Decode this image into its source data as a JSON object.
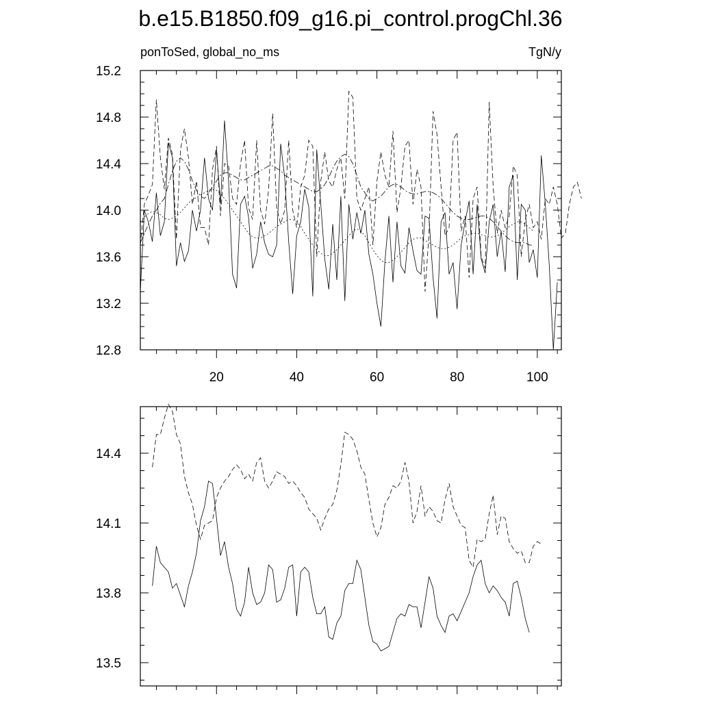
{
  "chart_data": {
    "title": "b.e15.B1850.f09_g16.pi_control.progChl.36",
    "panels": [
      {
        "type": "line",
        "left_label": "ponToSed, global_no_ms",
        "right_label": "TgN/y",
        "xlim": [
          1,
          106
        ],
        "ylim": [
          12.8,
          15.2
        ],
        "yticks": [
          12.8,
          13.2,
          13.6,
          14.0,
          14.4,
          14.8,
          15.2
        ],
        "ytick_labels": [
          "12.8",
          "13.2",
          "13.6",
          "14.0",
          "14.4",
          "14.8",
          "15.2"
        ],
        "xticks": [
          20,
          40,
          60,
          80,
          100
        ],
        "xtick_labels": [
          "20",
          "40",
          "60",
          "80",
          "100"
        ],
        "series": [
          {
            "style": "solid",
            "x_start": 1,
            "values": [
              13.3,
              14.0,
              13.9,
              13.73,
              14.15,
              13.78,
              13.9,
              14.58,
              14.45,
              13.52,
              13.72,
              13.56,
              13.65,
              14.0,
              13.82,
              14.0,
              14.45,
              14.1,
              14.0,
              14.52,
              14.05,
              14.77,
              14.25,
              13.45,
              13.33,
              14.05,
              14.12,
              13.94,
              13.5,
              13.62,
              13.9,
              13.72,
              13.62,
              13.6,
              13.7,
              14.57,
              14.28,
              13.73,
              13.28,
              13.78,
              13.9,
              14.18,
              14.03,
              13.26,
              14.52,
              14.05,
              13.58,
              13.32,
              13.88,
              13.4,
              14.12,
              13.22,
              14.05,
              13.75,
              13.98,
              13.8,
              14.0,
              13.62,
              13.45,
              13.2,
              13.0,
              13.56,
              13.95,
              13.38,
              13.9,
              13.52,
              13.46,
              13.85,
              13.65,
              13.48,
              13.45,
              13.95,
              13.93,
              13.42,
              13.07,
              13.9,
              13.98,
              13.45,
              13.55,
              13.15,
              13.7,
              13.9,
              14.08,
              13.45,
              14.05,
              13.58,
              13.46,
              13.9,
              14.05,
              13.6,
              13.82,
              13.47,
              14.2,
              14.3,
              13.4,
              14.05,
              14.0,
              13.55,
              13.66,
              13.42,
              14.47,
              14.05,
              13.52,
              12.8,
              13.38
            ]
          },
          {
            "style": "dashed",
            "x_start": 1,
            "values": [
              13.7,
              14.05,
              14.13,
              14.22,
              14.95,
              14.45,
              14.18,
              14.62,
              14.48,
              13.75,
              14.52,
              14.7,
              14.45,
              14.05,
              14.25,
              13.85,
              13.85,
              13.7,
              14.35,
              14.55,
              13.95,
              14.4,
              14.38,
              14.1,
              14.05,
              14.4,
              14.6,
              14.02,
              13.92,
              14.6,
              14.0,
              13.88,
              14.18,
              14.83,
              14.02,
              13.88,
              14.0,
              14.6,
              14.0,
              13.85,
              14.2,
              14.3,
              14.6,
              14.55,
              13.6,
              14.25,
              14.5,
              14.25,
              14.2,
              14.35,
              14.45,
              14.1,
              15.02,
              14.97,
              14.1,
              14.0,
              14.1,
              14.2,
              13.7,
              14.25,
              14.5,
              14.3,
              14.2,
              14.68,
              13.98,
              14.2,
              14.55,
              14.6,
              14.05,
              14.35,
              14.2,
              13.3,
              13.8,
              14.85,
              14.65,
              14.2,
              13.78,
              13.85,
              14.6,
              14.67,
              13.82,
              13.95,
              13.42,
              14.1,
              14.2,
              13.6,
              13.5,
              14.93,
              14.2,
              13.8,
              14.0,
              13.85,
              13.95,
              14.38,
              14.3,
              13.6,
              13.92,
              14.05,
              13.85,
              13.9,
              13.75,
              14.1,
              14.05,
              14.2,
              14.05,
              13.76,
              13.8,
              14.05,
              14.2,
              14.24,
              14.1
            ]
          },
          {
            "style": "dash-dot",
            "x_start": 1,
            "values": [
              13.72,
              13.8,
              13.88,
              13.95,
              14.0,
              14.06,
              14.1,
              14.22,
              14.34,
              14.42,
              14.45,
              14.42,
              14.35,
              14.25,
              14.17,
              14.12,
              14.1,
              14.15,
              14.2,
              14.25,
              14.3,
              14.32,
              14.32,
              14.3,
              14.28,
              14.26,
              14.26,
              14.28,
              14.3,
              14.32,
              14.34,
              14.36,
              14.38,
              14.38,
              14.36,
              14.34,
              14.3,
              14.28,
              14.26,
              14.24,
              14.22,
              14.2,
              14.18,
              14.16,
              14.16,
              14.18,
              14.22,
              14.28,
              14.36,
              14.42,
              14.46,
              14.48,
              14.46,
              14.4,
              14.3,
              14.2,
              14.15,
              14.1,
              14.08,
              14.1,
              14.12,
              14.16,
              14.2,
              14.22,
              14.22,
              14.2,
              14.17,
              14.15,
              14.14,
              14.14,
              14.15,
              14.16,
              14.16,
              14.15,
              14.13,
              14.1,
              14.06,
              14.02,
              13.98,
              13.95,
              13.93,
              13.92,
              13.92,
              13.93,
              13.94,
              13.95,
              13.95,
              13.93,
              13.9,
              13.86,
              13.82,
              13.78,
              13.75,
              13.73,
              13.72,
              13.72,
              13.72,
              13.7,
              13.7
            ]
          },
          {
            "style": "dotted",
            "x_start": 1,
            "values": [
              13.9,
              13.94,
              13.97,
              13.99,
              13.98,
              13.96,
              13.93,
              13.92,
              13.93,
              13.95,
              13.98,
              14.02,
              14.06,
              14.09,
              14.11,
              14.13,
              14.15,
              14.17,
              14.18,
              14.17,
              14.14,
              14.1,
              14.05,
              14.0,
              13.95,
              13.9,
              13.85,
              13.8,
              13.77,
              13.76,
              13.76,
              13.78,
              13.8,
              13.83,
              13.86,
              13.88,
              13.9,
              13.92,
              13.92,
              13.9,
              13.86,
              13.8,
              13.75,
              13.7,
              13.66,
              13.63,
              13.61,
              13.61,
              13.63,
              13.66,
              13.7,
              13.74,
              13.78,
              13.82,
              13.84,
              13.82,
              13.78,
              13.72,
              13.66,
              13.61,
              13.57,
              13.55,
              13.55,
              13.57,
              13.6,
              13.64,
              13.68,
              13.72,
              13.75,
              13.76,
              13.76,
              13.74,
              13.72,
              13.7,
              13.68,
              13.67,
              13.67,
              13.68,
              13.7,
              13.73,
              13.76,
              13.78,
              13.79,
              13.8,
              13.8,
              13.79,
              13.78,
              13.77,
              13.77,
              13.78,
              13.8,
              13.83,
              13.86,
              13.88,
              13.9,
              13.9,
              13.88,
              13.85,
              13.82
            ]
          }
        ]
      },
      {
        "type": "line",
        "xlim": [
          1,
          106
        ],
        "ylim": [
          13.4,
          14.6
        ],
        "yticks": [
          13.5,
          13.8,
          14.1,
          14.4
        ],
        "ytick_labels": [
          "13.5",
          "13.8",
          "14.1",
          "14.4"
        ],
        "xticks": [
          20,
          40,
          60,
          80,
          100
        ],
        "xtick_labels": [],
        "series": [
          {
            "style": "solid",
            "x_start": 4,
            "values": [
              13.83,
              14.0,
              13.93,
              13.91,
              13.89,
              13.82,
              13.84,
              13.79,
              13.74,
              13.83,
              13.89,
              13.97,
              14.11,
              14.17,
              14.28,
              14.27,
              14.12,
              13.96,
              14.02,
              13.91,
              13.84,
              13.73,
              13.7,
              13.76,
              13.91,
              13.8,
              13.75,
              13.76,
              13.8,
              13.92,
              13.9,
              13.76,
              13.77,
              13.82,
              13.91,
              13.92,
              13.7,
              13.89,
              13.91,
              13.89,
              13.78,
              13.71,
              13.71,
              13.74,
              13.61,
              13.6,
              13.67,
              13.7,
              13.81,
              13.84,
              13.84,
              13.94,
              13.9,
              13.78,
              13.66,
              13.59,
              13.58,
              13.55,
              13.56,
              13.57,
              13.63,
              13.69,
              13.71,
              13.7,
              13.75,
              13.74,
              13.74,
              13.65,
              13.76,
              13.87,
              13.82,
              13.7,
              13.66,
              13.63,
              13.7,
              13.71,
              13.68,
              13.72,
              13.76,
              13.8,
              13.87,
              13.92,
              13.94,
              13.84,
              13.8,
              13.83,
              13.81,
              13.78,
              13.76,
              13.7,
              13.84,
              13.85,
              13.78,
              13.69,
              13.63
            ]
          },
          {
            "style": "dashed",
            "x_start": 4,
            "values": [
              14.34,
              14.48,
              14.48,
              14.55,
              14.61,
              14.58,
              14.48,
              14.44,
              14.3,
              14.23,
              14.18,
              14.09,
              14.03,
              14.09,
              14.1,
              14.11,
              14.21,
              14.25,
              14.28,
              14.3,
              14.33,
              14.35,
              14.33,
              14.29,
              14.31,
              14.28,
              14.36,
              14.38,
              14.28,
              14.25,
              14.28,
              14.32,
              14.31,
              14.3,
              14.27,
              14.28,
              14.26,
              14.23,
              14.21,
              14.16,
              14.14,
              14.12,
              14.07,
              14.12,
              14.16,
              14.18,
              14.24,
              14.35,
              14.49,
              14.48,
              14.46,
              14.41,
              14.34,
              14.31,
              14.2,
              14.1,
              14.04,
              14.08,
              14.18,
              14.21,
              14.26,
              14.25,
              14.28,
              14.36,
              14.28,
              14.1,
              14.15,
              14.26,
              14.13,
              14.17,
              14.15,
              14.11,
              14.1,
              14.2,
              14.27,
              14.17,
              14.13,
              14.09,
              14.08,
              13.94,
              13.91,
              14.03,
              14.02,
              14.03,
              14.14,
              14.22,
              14.05,
              14.13,
              14.12,
              14.02,
              13.99,
              13.97,
              13.98,
              13.93,
              13.93,
              14.0,
              14.02,
              14.01
            ]
          }
        ]
      }
    ]
  }
}
